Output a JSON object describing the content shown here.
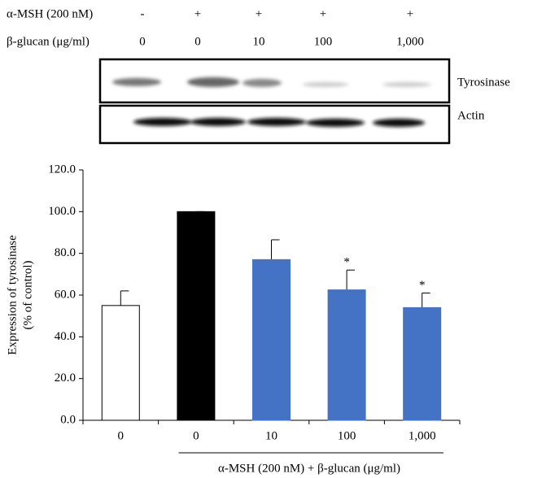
{
  "blot": {
    "rows": [
      {
        "label": "α-MSH (200 nM)",
        "cells": [
          "-",
          "+",
          "+",
          "+",
          "+"
        ]
      },
      {
        "label": "β-glucan (μg/ml)",
        "cells": [
          "0",
          "0",
          "10",
          "100",
          "1,000"
        ]
      }
    ],
    "bands": [
      "Tyrosinase",
      "Actin"
    ]
  },
  "chart_data": {
    "type": "bar",
    "y_label": [
      "Expression of tyrosinase",
      "(% of control)"
    ],
    "x_label": "α-MSH (200 nM) + β-glucan (μg/ml)",
    "categories": [
      "0",
      "0",
      "10",
      "100",
      "1,000"
    ],
    "values": [
      55,
      100,
      77,
      62.5,
      54
    ],
    "errors": [
      7,
      0,
      9.5,
      9.5,
      7
    ],
    "colors": [
      "#ffffff",
      "#000000",
      "#4472c4",
      "#4472c4",
      "#4472c4"
    ],
    "significance": [
      null,
      null,
      null,
      "*",
      "*"
    ],
    "ylim": [
      0,
      120
    ],
    "yticks": [
      {
        "value": 0,
        "label": "0.0"
      },
      {
        "value": 20,
        "label": "20.0"
      },
      {
        "value": 40,
        "label": "40.0"
      },
      {
        "value": 60,
        "label": "60.0"
      },
      {
        "value": 80,
        "label": "80.0"
      },
      {
        "value": 100,
        "label": "100.0"
      },
      {
        "value": 120,
        "label": "120.0"
      }
    ]
  }
}
